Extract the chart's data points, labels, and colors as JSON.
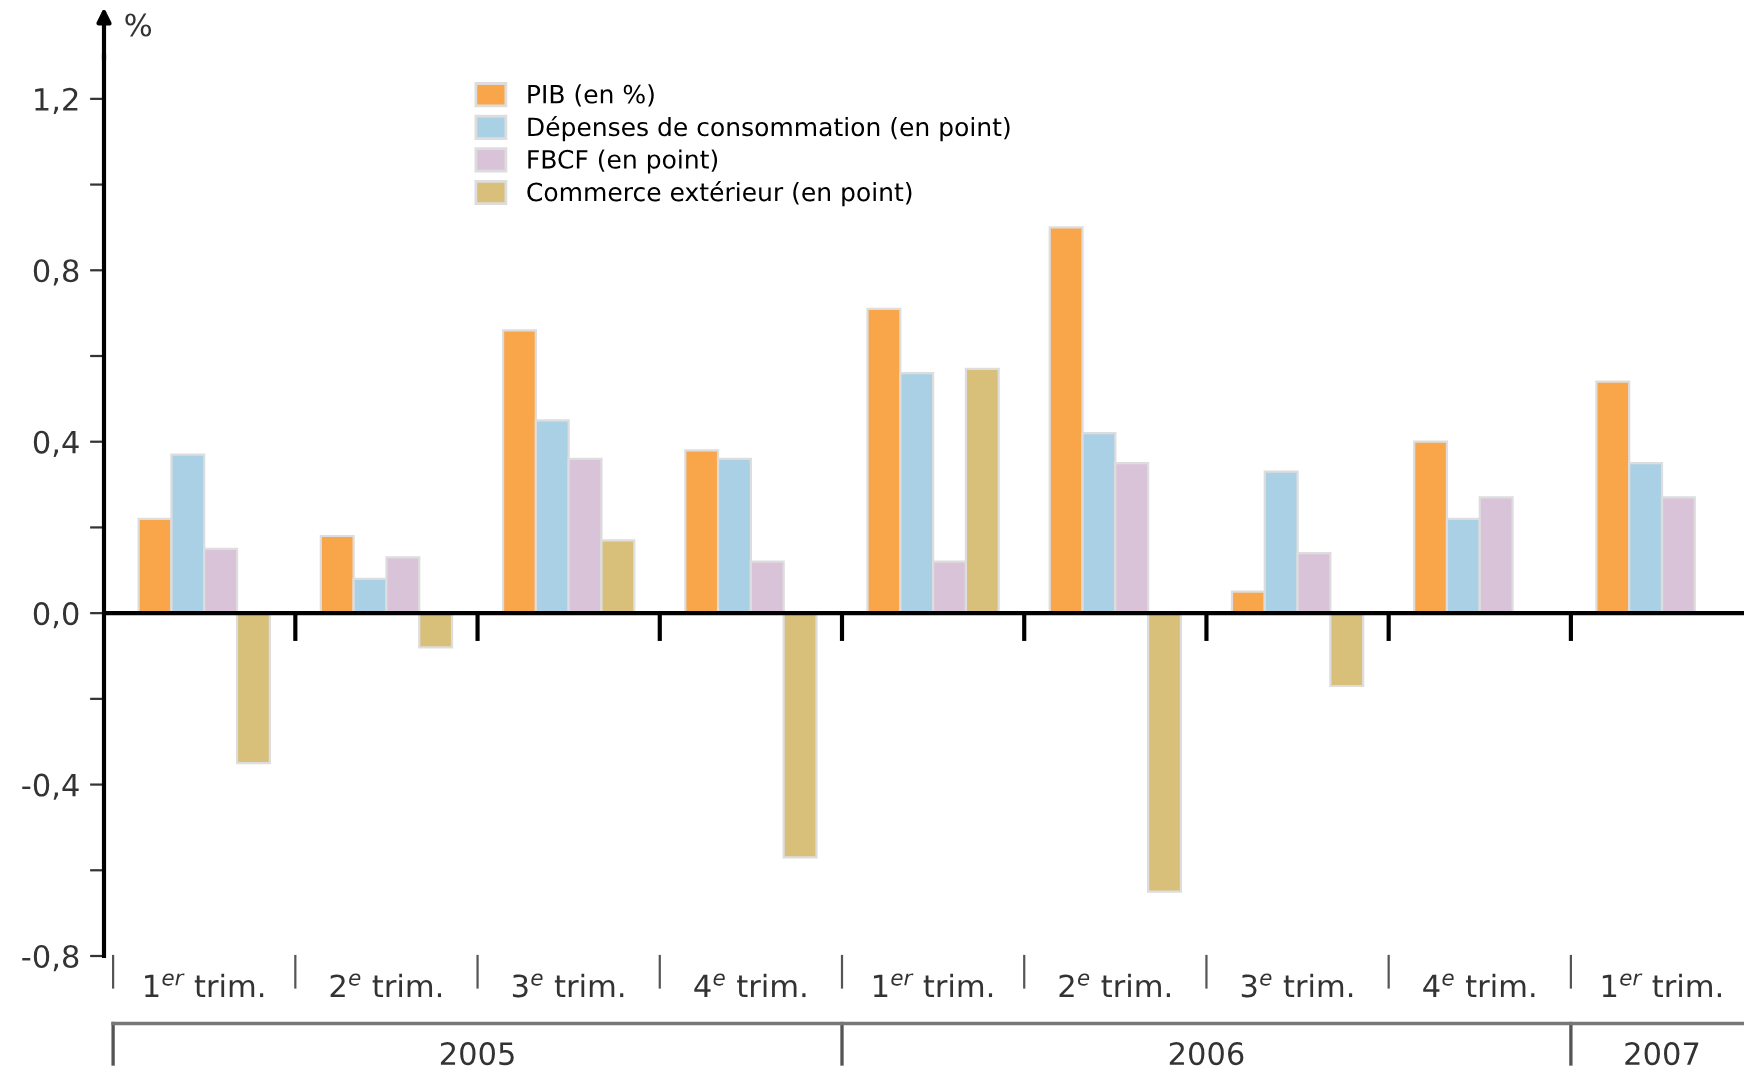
{
  "chart_data": {
    "type": "bar",
    "ylabel": "%",
    "categories": [
      "1$^{er}$ trim.",
      "2$^{e}$ trim.",
      "3$^{e}$ trim.",
      "4$^{e}$ trim.",
      "1$^{er}$ trim.",
      "2$^{e}$ trim.",
      "3$^{e}$ trim.",
      "4$^{e}$ trim.",
      "1$^{er}$ trim."
    ],
    "series": [
      {
        "name": "PIB (en %)",
        "color": "#f9a64a",
        "values": [
          0.22,
          0.18,
          0.66,
          0.38,
          0.71,
          0.9,
          0.05,
          0.4,
          0.54
        ]
      },
      {
        "name": "Dépenses de consommation (en point)",
        "color": "#aad0e6",
        "values": [
          0.37,
          0.08,
          0.45,
          0.36,
          0.56,
          0.42,
          0.33,
          0.22,
          0.35
        ]
      },
      {
        "name": "FBCF (en point)",
        "color": "#d9c3d8",
        "values": [
          0.15,
          0.13,
          0.36,
          0.12,
          0.12,
          0.35,
          0.14,
          0.27,
          0.27
        ]
      },
      {
        "name": "Commerce extérieur (en point)",
        "color": "#d8c07a",
        "values": [
          -0.35,
          -0.08,
          0.17,
          -0.57,
          0.57,
          -0.65,
          -0.17,
          null,
          null
        ]
      }
    ],
    "ylim": [
      -0.8,
      1.3
    ],
    "yticks": [
      {
        "value": -0.8,
        "label": "-0,8"
      },
      {
        "value": -0.6,
        "label": null
      },
      {
        "value": -0.4,
        "label": "-0,4"
      },
      {
        "value": -0.2,
        "label": null
      },
      {
        "value": 0,
        "label": "0,0"
      },
      {
        "value": 0.2,
        "label": null
      },
      {
        "value": 0.4,
        "label": "0,4"
      },
      {
        "value": 0.6,
        "label": null
      },
      {
        "value": 0.8,
        "label": "0,8"
      },
      {
        "value": 1.0,
        "label": null
      },
      {
        "value": 1.2,
        "label": "1,2"
      }
    ],
    "annotations": [
      "2005",
      "2006",
      "2007"
    ],
    "ref_lines": [
      {
        "axis": "y",
        "value": 0,
        "color": "#000000"
      }
    ],
    "legend": "top left",
    "grid": false
  }
}
